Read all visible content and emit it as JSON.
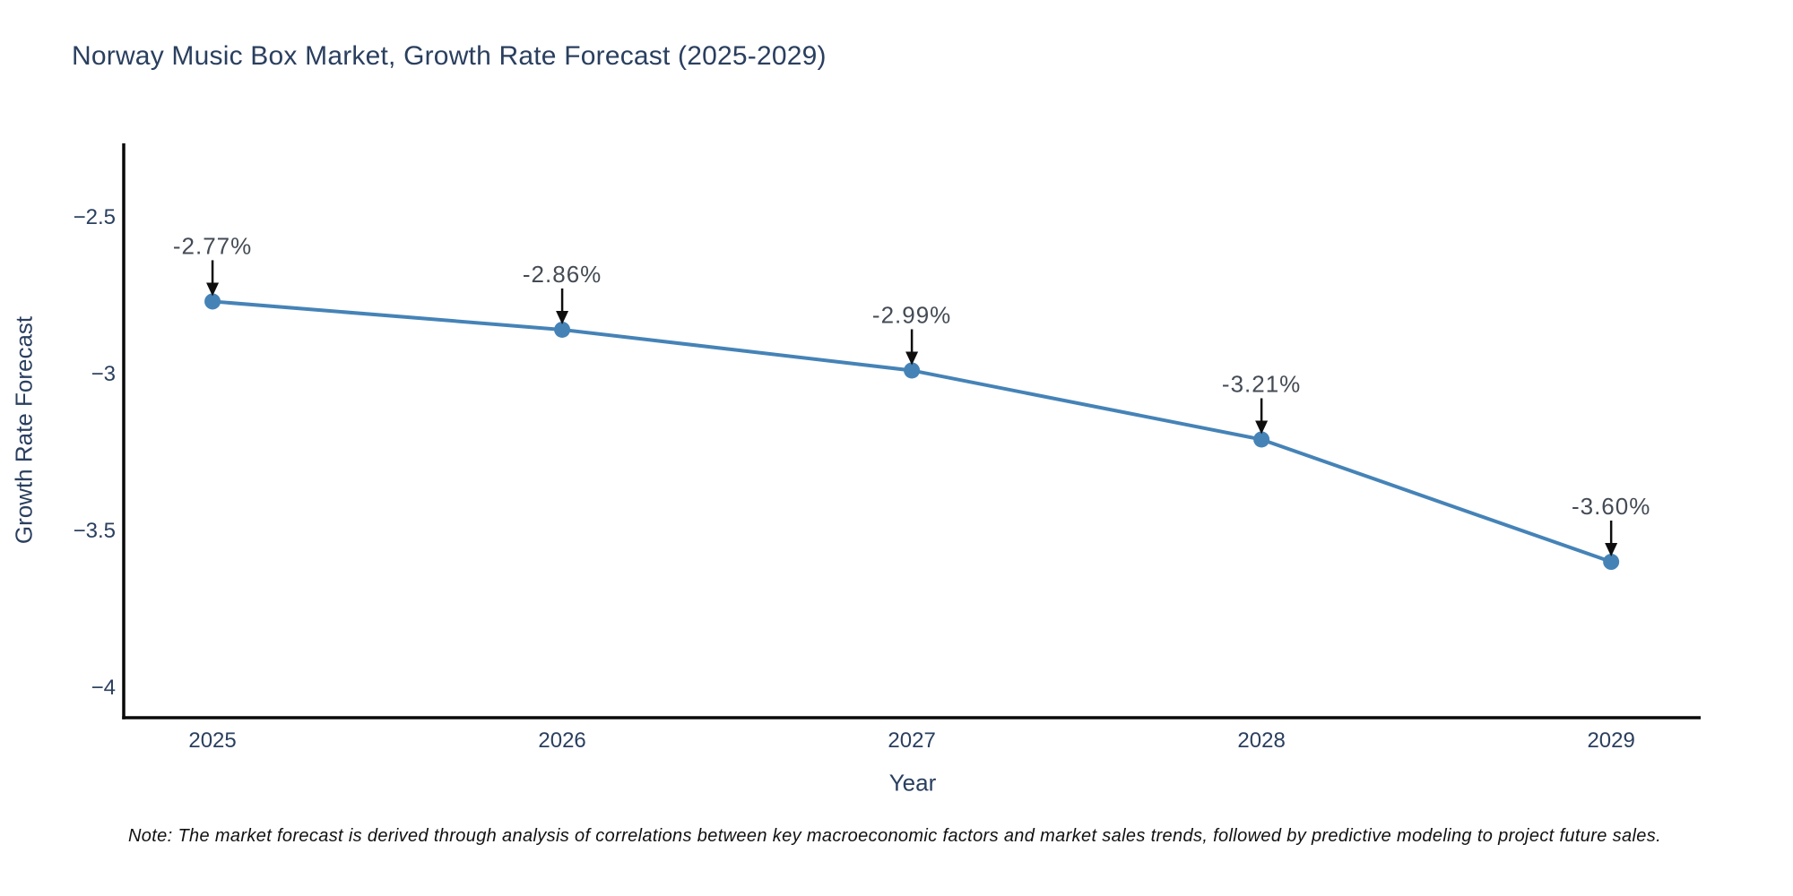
{
  "title": "Norway Music Box Market, Growth Rate Forecast (2025-2029)",
  "note": "Note: The market forecast is derived through analysis of correlations between key macroeconomic factors and market sales trends, followed by predictive modeling to project future sales.",
  "chart_data": {
    "type": "line",
    "title": "Norway Music Box Market, Growth Rate Forecast (2025-2029)",
    "xlabel": "Year",
    "ylabel": "Growth Rate Forecast",
    "x": [
      2025,
      2026,
      2027,
      2028,
      2029
    ],
    "y": [
      -2.77,
      -2.86,
      -2.99,
      -3.21,
      -3.6
    ],
    "point_labels": [
      "-2.77%",
      "-2.86%",
      "-2.99%",
      "-3.21%",
      "-3.60%"
    ],
    "x_tick_labels": [
      "2025",
      "2026",
      "2027",
      "2028",
      "2029"
    ],
    "x_tick_values": [
      2025,
      2026,
      2027,
      2028,
      2029
    ],
    "y_tick_labels": [
      "−2.5",
      "−3",
      "−3.5",
      "−4"
    ],
    "y_tick_values": [
      -2.5,
      -3,
      -3.5,
      -4
    ],
    "xlim": [
      2024.746,
      2029.256
    ],
    "ylim": [
      -4.097,
      -2.266
    ],
    "grid": false,
    "legend": false,
    "colors": {
      "line": "#4583b7",
      "marker": "#4583b7",
      "axis_line": "#0a0a0a",
      "tick_text": "#2a3f5f",
      "annotation_text": "#444b55",
      "annotation_arrow": "#0e0e0e",
      "title_text": "#2a3f5f"
    }
  }
}
